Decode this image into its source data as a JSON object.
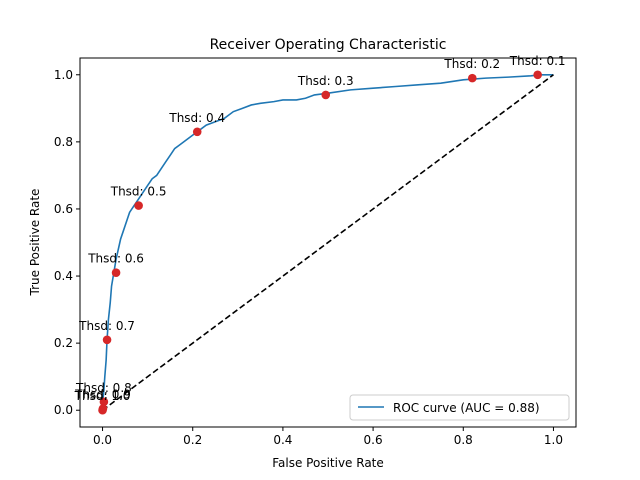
{
  "chart_data": {
    "type": "line",
    "title": "Receiver Operating Characteristic",
    "xlabel": "False Positive Rate",
    "ylabel": "True Positive Rate",
    "xlim": [
      -0.05,
      1.05
    ],
    "ylim": [
      -0.05,
      1.05
    ],
    "x_ticks": [
      "0.0",
      "0.2",
      "0.4",
      "0.6",
      "0.8",
      "1.0"
    ],
    "y_ticks": [
      "0.0",
      "0.2",
      "0.4",
      "0.6",
      "0.8",
      "1.0"
    ],
    "grid": false,
    "legend_position": "lower-right",
    "series": [
      {
        "name": "ROC curve (AUC = 0.88)",
        "color": "#1f77b4",
        "style": "solid",
        "x": [
          0.0,
          0.0,
          0.003,
          0.005,
          0.008,
          0.01,
          0.013,
          0.017,
          0.02,
          0.025,
          0.03,
          0.035,
          0.04,
          0.045,
          0.05,
          0.055,
          0.06,
          0.065,
          0.07,
          0.08,
          0.09,
          0.1,
          0.11,
          0.12,
          0.13,
          0.14,
          0.15,
          0.16,
          0.17,
          0.18,
          0.19,
          0.2,
          0.21,
          0.23,
          0.25,
          0.27,
          0.29,
          0.31,
          0.33,
          0.35,
          0.38,
          0.4,
          0.43,
          0.45,
          0.47,
          0.5,
          0.55,
          0.6,
          0.65,
          0.7,
          0.75,
          0.8,
          0.85,
          0.9,
          0.95,
          0.97,
          1.0
        ],
        "y": [
          0.0,
          0.02,
          0.06,
          0.1,
          0.15,
          0.21,
          0.27,
          0.32,
          0.37,
          0.41,
          0.45,
          0.48,
          0.51,
          0.53,
          0.55,
          0.57,
          0.59,
          0.6,
          0.61,
          0.63,
          0.65,
          0.67,
          0.69,
          0.7,
          0.72,
          0.74,
          0.76,
          0.78,
          0.79,
          0.8,
          0.81,
          0.82,
          0.83,
          0.85,
          0.86,
          0.87,
          0.89,
          0.9,
          0.91,
          0.915,
          0.92,
          0.925,
          0.925,
          0.93,
          0.94,
          0.945,
          0.955,
          0.96,
          0.965,
          0.97,
          0.975,
          0.985,
          0.99,
          0.993,
          0.997,
          1.0,
          1.0
        ]
      },
      {
        "name": "",
        "color": "#000000",
        "style": "dashed",
        "x": [
          0,
          1
        ],
        "y": [
          0,
          1
        ]
      }
    ],
    "threshold_points": [
      {
        "label": "Thsd: 0.1",
        "x": 0.965,
        "y": 1.0
      },
      {
        "label": "Thsd: 0.2",
        "x": 0.82,
        "y": 0.99
      },
      {
        "label": "Thsd: 0.3",
        "x": 0.495,
        "y": 0.94
      },
      {
        "label": "Thsd: 0.4",
        "x": 0.21,
        "y": 0.83
      },
      {
        "label": "Thsd: 0.5",
        "x": 0.08,
        "y": 0.61
      },
      {
        "label": "Thsd: 0.6",
        "x": 0.03,
        "y": 0.41
      },
      {
        "label": "Thsd: 0.7",
        "x": 0.01,
        "y": 0.21
      },
      {
        "label": "Thsd: 0.8",
        "x": 0.003,
        "y": 0.025
      },
      {
        "label": "Thsd: 0.9",
        "x": 0.001,
        "y": 0.005
      },
      {
        "label": "Thsd: 1.0",
        "x": 0.0,
        "y": 0.0
      }
    ],
    "marker_color": "#d62728"
  }
}
